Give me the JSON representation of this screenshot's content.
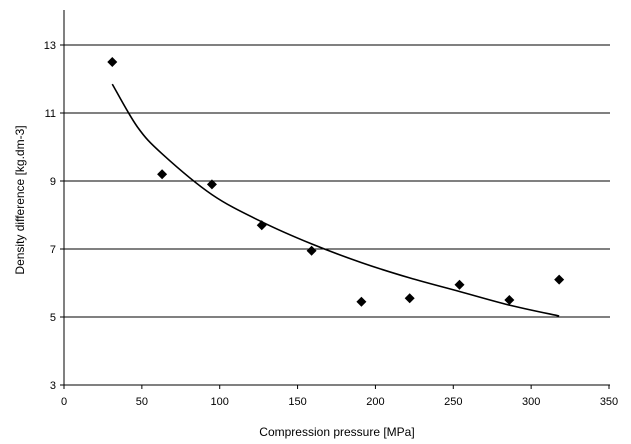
{
  "chart_data": {
    "type": "scatter",
    "title": "",
    "xlabel": "Compression pressure [MPa]",
    "ylabel": "Density difference [kg.dm-3]",
    "xlim": [
      0,
      350
    ],
    "ylim": [
      3,
      13
    ],
    "x_ticks": [
      0,
      50,
      100,
      150,
      200,
      250,
      300,
      350
    ],
    "y_ticks": [
      3,
      5,
      7,
      9,
      11,
      13
    ],
    "grid": "horizontal",
    "legend": "none",
    "series": [
      {
        "marker": "diamond",
        "color": "#000000",
        "points": [
          {
            "x": 31,
            "y": 12.5
          },
          {
            "x": 63,
            "y": 9.2
          },
          {
            "x": 95,
            "y": 8.9
          },
          {
            "x": 127,
            "y": 7.7
          },
          {
            "x": 159,
            "y": 6.95
          },
          {
            "x": 191,
            "y": 5.45
          },
          {
            "x": 222,
            "y": 5.55
          },
          {
            "x": 254,
            "y": 5.95
          },
          {
            "x": 286,
            "y": 5.5
          },
          {
            "x": 318,
            "y": 6.1
          }
        ]
      }
    ],
    "trendline": {
      "type": "power",
      "color": "#000000",
      "points": [
        {
          "x": 31,
          "y": 11.85
        },
        {
          "x": 47,
          "y": 10.6
        },
        {
          "x": 63,
          "y": 9.8
        },
        {
          "x": 95,
          "y": 8.6
        },
        {
          "x": 127,
          "y": 7.8
        },
        {
          "x": 159,
          "y": 7.15
        },
        {
          "x": 191,
          "y": 6.6
        },
        {
          "x": 222,
          "y": 6.15
        },
        {
          "x": 254,
          "y": 5.75
        },
        {
          "x": 286,
          "y": 5.35
        },
        {
          "x": 318,
          "y": 5.03
        }
      ]
    }
  }
}
